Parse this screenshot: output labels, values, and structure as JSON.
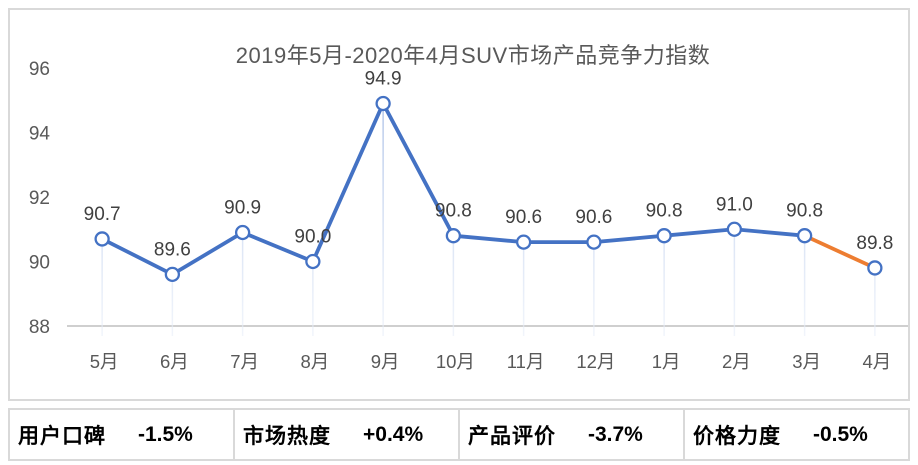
{
  "chart_data": {
    "type": "line",
    "title": "2019年5月-2020年4月SUV市场产品竞争力指数",
    "categories": [
      "5月",
      "6月",
      "7月",
      "8月",
      "9月",
      "10月",
      "11月",
      "12月",
      "1月",
      "2月",
      "3月",
      "4月"
    ],
    "series": [
      {
        "values": [
          90.7,
          89.6,
          90.9,
          90.0,
          94.9,
          90.8,
          90.6,
          90.6,
          90.8,
          91.0,
          90.8,
          89.8
        ],
        "color": "#4472C4",
        "last_segment_color": "#ED7D31",
        "marker": "open-circle",
        "data_labels": [
          "90.7",
          "89.6",
          "90.9",
          "90.0",
          "94.9",
          "90.8",
          "90.6",
          "90.6",
          "90.8",
          "91.0",
          "90.8",
          "89.8"
        ]
      }
    ],
    "xlabel": "",
    "ylabel": "",
    "ylim": [
      88,
      96.5
    ],
    "y_ticks": [
      88,
      90,
      92,
      94,
      96
    ],
    "grid": false,
    "legend": false,
    "drop_lines": true
  },
  "colors": {
    "line_blue": "#4472C4",
    "segment_orange": "#ED7D31",
    "marker_fill": "#ffffff",
    "drop_line_top": "#AFC3E8",
    "drop_line_bottom": "#E9EFF9",
    "baseline": "#BFBFBF",
    "axis_text": "#595959",
    "data_label_text": "#404040",
    "card_border": "#D9D9D9",
    "stats_text": "#000000"
  },
  "stats": {
    "items": [
      {
        "label": "用户口碑",
        "value": "-1.5%"
      },
      {
        "label": "市场热度",
        "value": "+0.4%"
      },
      {
        "label": "产品评价",
        "value": "-3.7%"
      },
      {
        "label": "价格力度",
        "value": "-0.5%"
      }
    ]
  }
}
